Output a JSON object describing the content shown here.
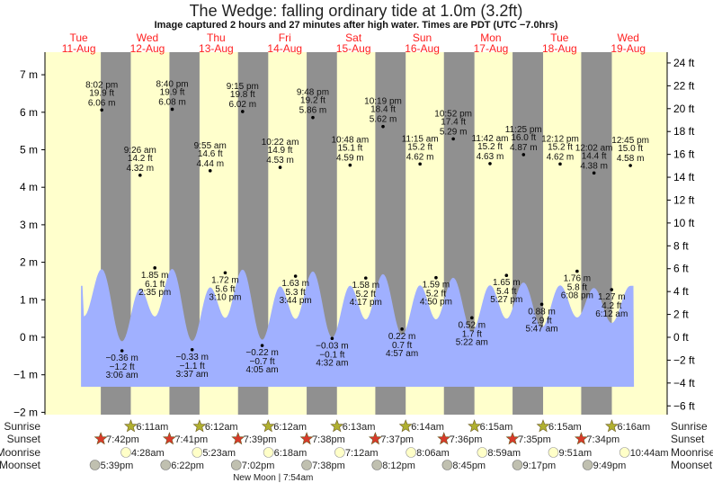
{
  "chart_data": {
    "type": "area",
    "title": "The Wedge: falling  ordinary tide at 1.0m (3.2ft)",
    "subtitle": "Image captured 2 hours and 27 minutes after high water. Times are PDT (UTC −7.0hrs)",
    "days": [
      {
        "dow": "Tue",
        "date": "11-Aug"
      },
      {
        "dow": "Wed",
        "date": "12-Aug"
      },
      {
        "dow": "Thu",
        "date": "13-Aug"
      },
      {
        "dow": "Fri",
        "date": "14-Aug"
      },
      {
        "dow": "Sat",
        "date": "15-Aug"
      },
      {
        "dow": "Sun",
        "date": "16-Aug"
      },
      {
        "dow": "Mon",
        "date": "17-Aug"
      },
      {
        "dow": "Tue",
        "date": "18-Aug"
      },
      {
        "dow": "Wed",
        "date": "19-Aug"
      }
    ],
    "y_left": {
      "unit": "m",
      "ylim": [
        -2.06,
        7.6
      ],
      "ticks": [
        "7 m",
        "6 m",
        "5 m",
        "4 m",
        "3 m",
        "2 m",
        "1 m",
        "0 m",
        "−1 m",
        "−2 m"
      ],
      "tick_values": [
        7,
        6,
        5,
        4,
        3,
        2,
        1,
        0,
        -1,
        -2
      ]
    },
    "y_right": {
      "unit": "ft",
      "ticks": [
        "24 ft",
        "22 ft",
        "20 ft",
        "18 ft",
        "16 ft",
        "14 ft",
        "12 ft",
        "10 ft",
        "8 ft",
        "6 ft",
        "4 ft",
        "2 ft",
        "0 ft",
        "−2 ft",
        "−4 ft",
        "−6 ft"
      ],
      "tick_values": [
        24,
        22,
        20,
        18,
        16,
        14,
        12,
        10,
        8,
        6,
        4,
        2,
        0,
        -2,
        -4,
        -6
      ]
    },
    "tides": [
      {
        "day": 0,
        "time": "8:02 pm",
        "ft": "19.9 ft",
        "m": "6.06 m",
        "value": 6.06,
        "type": "high"
      },
      {
        "day": 1,
        "time": "3:06 am",
        "ft": "−1.2 ft",
        "m": "−0.36 m",
        "value": -0.36,
        "type": "low"
      },
      {
        "day": 1,
        "time": "9:26 am",
        "ft": "14.2 ft",
        "m": "4.32 m",
        "value": 4.32,
        "type": "high"
      },
      {
        "day": 1,
        "time": "2:35 pm",
        "ft": "6.1 ft",
        "m": "1.85 m",
        "value": 1.85,
        "type": "low"
      },
      {
        "day": 1,
        "time": "8:40 pm",
        "ft": "19.9 ft",
        "m": "6.08 m",
        "value": 6.08,
        "type": "high"
      },
      {
        "day": 2,
        "time": "3:37 am",
        "ft": "−1.1 ft",
        "m": "−0.33 m",
        "value": -0.33,
        "type": "low"
      },
      {
        "day": 2,
        "time": "9:55 am",
        "ft": "14.6 ft",
        "m": "4.44 m",
        "value": 4.44,
        "type": "high"
      },
      {
        "day": 2,
        "time": "3:10 pm",
        "ft": "5.6 ft",
        "m": "1.72 m",
        "value": 1.72,
        "type": "low"
      },
      {
        "day": 2,
        "time": "9:15 pm",
        "ft": "19.8 ft",
        "m": "6.02 m",
        "value": 6.02,
        "type": "high"
      },
      {
        "day": 3,
        "time": "4:05 am",
        "ft": "−0.7 ft",
        "m": "−0.22 m",
        "value": -0.22,
        "type": "low"
      },
      {
        "day": 3,
        "time": "10:22 am",
        "ft": "14.9 ft",
        "m": "4.53 m",
        "value": 4.53,
        "type": "high"
      },
      {
        "day": 3,
        "time": "3:44 pm",
        "ft": "5.3 ft",
        "m": "1.63 m",
        "value": 1.63,
        "type": "low"
      },
      {
        "day": 3,
        "time": "9:48 pm",
        "ft": "19.2 ft",
        "m": "5.86 m",
        "value": 5.86,
        "type": "high"
      },
      {
        "day": 4,
        "time": "4:32 am",
        "ft": "−0.1 ft",
        "m": "−0.03 m",
        "value": -0.03,
        "type": "low"
      },
      {
        "day": 4,
        "time": "10:48 am",
        "ft": "15.1 ft",
        "m": "4.59 m",
        "value": 4.59,
        "type": "high"
      },
      {
        "day": 4,
        "time": "4:17 pm",
        "ft": "5.2 ft",
        "m": "1.58 m",
        "value": 1.58,
        "type": "low"
      },
      {
        "day": 4,
        "time": "10:19 pm",
        "ft": "18.4 ft",
        "m": "5.62 m",
        "value": 5.62,
        "type": "high"
      },
      {
        "day": 5,
        "time": "4:57 am",
        "ft": "0.7 ft",
        "m": "0.22 m",
        "value": 0.22,
        "type": "low"
      },
      {
        "day": 5,
        "time": "11:15 am",
        "ft": "15.2 ft",
        "m": "4.62 m",
        "value": 4.62,
        "type": "high"
      },
      {
        "day": 5,
        "time": "4:50 pm",
        "ft": "5.2 ft",
        "m": "1.59 m",
        "value": 1.59,
        "type": "low"
      },
      {
        "day": 5,
        "time": "10:52 pm",
        "ft": "17.4 ft",
        "m": "5.29 m",
        "value": 5.29,
        "type": "high"
      },
      {
        "day": 6,
        "time": "5:22 am",
        "ft": "1.7 ft",
        "m": "0.52 m",
        "value": 0.52,
        "type": "low"
      },
      {
        "day": 6,
        "time": "11:42 am",
        "ft": "15.2 ft",
        "m": "4.63 m",
        "value": 4.63,
        "type": "high"
      },
      {
        "day": 6,
        "time": "5:27 pm",
        "ft": "5.4 ft",
        "m": "1.65 m",
        "value": 1.65,
        "type": "low"
      },
      {
        "day": 6,
        "time": "11:25 pm",
        "ft": "16.0 ft",
        "m": "4.87 m",
        "value": 4.87,
        "type": "high"
      },
      {
        "day": 7,
        "time": "5:47 am",
        "ft": "2.9 ft",
        "m": "0.88 m",
        "value": 0.88,
        "type": "low"
      },
      {
        "day": 7,
        "time": "12:12 pm",
        "ft": "15.2 ft",
        "m": "4.62 m",
        "value": 4.62,
        "type": "high"
      },
      {
        "day": 7,
        "time": "6:08 pm",
        "ft": "5.8 ft",
        "m": "1.76 m",
        "value": 1.76,
        "type": "low"
      },
      {
        "day": 8,
        "time": "12:02 am",
        "ft": "14.4 ft",
        "m": "4.38 m",
        "value": 4.38,
        "type": "high"
      },
      {
        "day": 8,
        "time": "6:12 am",
        "ft": "4.2 ft",
        "m": "1.27 m",
        "value": 1.27,
        "type": "low"
      },
      {
        "day": 8,
        "time": "12:45 pm",
        "ft": "15.0 ft",
        "m": "4.58 m",
        "value": 4.58,
        "type": "high"
      }
    ],
    "sun_moon": {
      "labels": {
        "sunrise": "Sunrise",
        "sunset": "Sunset",
        "moonrise": "Moonrise",
        "moonset": "Moonset"
      },
      "sunrise": [
        {
          "day": 1,
          "time": "6:11am"
        },
        {
          "day": 2,
          "time": "6:12am"
        },
        {
          "day": 3,
          "time": "6:12am"
        },
        {
          "day": 4,
          "time": "6:13am"
        },
        {
          "day": 5,
          "time": "6:14am"
        },
        {
          "day": 6,
          "time": "6:15am"
        },
        {
          "day": 7,
          "time": "6:15am"
        },
        {
          "day": 8,
          "time": "6:16am"
        }
      ],
      "sunset": [
        {
          "day": 0,
          "time": "7:42pm"
        },
        {
          "day": 1,
          "time": "7:41pm"
        },
        {
          "day": 2,
          "time": "7:39pm"
        },
        {
          "day": 3,
          "time": "7:38pm"
        },
        {
          "day": 4,
          "time": "7:37pm"
        },
        {
          "day": 5,
          "time": "7:36pm"
        },
        {
          "day": 6,
          "time": "7:35pm"
        },
        {
          "day": 7,
          "time": "7:34pm"
        }
      ],
      "moonrise": [
        {
          "day": 1,
          "time": "4:28am"
        },
        {
          "day": 2,
          "time": "5:23am"
        },
        {
          "day": 3,
          "time": "6:18am"
        },
        {
          "day": 4,
          "time": "7:12am"
        },
        {
          "day": 5,
          "time": "8:06am"
        },
        {
          "day": 6,
          "time": "8:59am"
        },
        {
          "day": 7,
          "time": "9:51am"
        },
        {
          "day": 8,
          "time": "10:44am"
        }
      ],
      "moonset": [
        {
          "day": 0,
          "time": "5:39pm"
        },
        {
          "day": 1,
          "time": "6:22pm"
        },
        {
          "day": 2,
          "time": "7:02pm"
        },
        {
          "day": 3,
          "time": "7:38pm"
        },
        {
          "day": 4,
          "time": "8:12pm"
        },
        {
          "day": 5,
          "time": "8:45pm"
        },
        {
          "day": 6,
          "time": "9:17pm"
        },
        {
          "day": 7,
          "time": "9:49pm"
        }
      ],
      "moon_phase": {
        "day": 3,
        "time": "7:54am",
        "text": "New Moon | 7:54am"
      }
    },
    "colors": {
      "day": "#ffffcc",
      "night": "#909090",
      "water": "#a0b0ff",
      "day_label": "#ff2020",
      "sunrise_star": "#b0b030",
      "sunset_star": "#d83a2a",
      "moonrise": "#ffffc8",
      "moonset": "#c0c0b0"
    }
  }
}
